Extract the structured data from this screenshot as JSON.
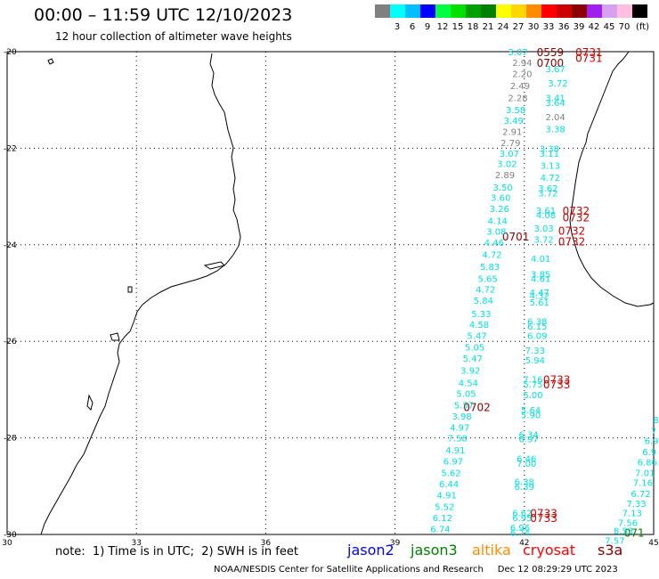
{
  "header": {
    "title": "00:00 – 11:59 UTC 12/10/2023",
    "subtitle": "12 hour collection of altimeter wave heights"
  },
  "color_scale": {
    "unit": "(ft)",
    "bins": [
      {
        "color": "#808080",
        "label": ""
      },
      {
        "color": "#00ffff",
        "label": "3"
      },
      {
        "color": "#00bfff",
        "label": "6"
      },
      {
        "color": "#0000ff",
        "label": "9"
      },
      {
        "color": "#00ff40",
        "label": "12"
      },
      {
        "color": "#00e000",
        "label": "15"
      },
      {
        "color": "#00a000",
        "label": "18"
      },
      {
        "color": "#008000",
        "label": "21"
      },
      {
        "color": "#ffff00",
        "label": "24"
      },
      {
        "color": "#ffd700",
        "label": "27"
      },
      {
        "color": "#ff8c00",
        "label": "30"
      },
      {
        "color": "#ff0000",
        "label": "33"
      },
      {
        "color": "#cc0000",
        "label": "36"
      },
      {
        "color": "#8b0000",
        "label": "39"
      },
      {
        "color": "#a020f0",
        "label": "42"
      },
      {
        "color": "#d8a0f0",
        "label": "45"
      },
      {
        "color": "#ffc0e0",
        "label": "70"
      },
      {
        "color": "#000000",
        "label": ""
      }
    ]
  },
  "axes": {
    "lon_ticks": [
      "30",
      "33",
      "36",
      "39",
      "42",
      "45"
    ],
    "lat_ticks": [
      "-20",
      "-22",
      "-24",
      "-26",
      "-28",
      "-30"
    ]
  },
  "track_labels": [
    {
      "text": "0559",
      "color": "#8b0000",
      "lon": 42.6,
      "lat": -20.0
    },
    {
      "text": "0700",
      "color": "#8b0000",
      "lon": 42.6,
      "lat": -20.22
    },
    {
      "text": "0731",
      "color": "#cc0000",
      "lon": 43.5,
      "lat": -20.0
    },
    {
      "text": "0731",
      "color": "#cc0000",
      "lon": 43.5,
      "lat": -20.12
    },
    {
      "text": "0732",
      "color": "#cc0000",
      "lon": 43.2,
      "lat": -23.28
    },
    {
      "text": "0732",
      "color": "#cc0000",
      "lon": 43.2,
      "lat": -23.42
    },
    {
      "text": "0732",
      "color": "#cc0000",
      "lon": 43.1,
      "lat": -23.7
    },
    {
      "text": "0732",
      "color": "#cc0000",
      "lon": 43.1,
      "lat": -23.92
    },
    {
      "text": "0701",
      "color": "#8b0000",
      "lon": 41.8,
      "lat": -23.82
    },
    {
      "text": "0733",
      "color": "#cc0000",
      "lon": 42.75,
      "lat": -26.78
    },
    {
      "text": "0733",
      "color": "#cc0000",
      "lon": 42.75,
      "lat": -26.88
    },
    {
      "text": "0702",
      "color": "#8b0000",
      "lon": 40.9,
      "lat": -27.35
    },
    {
      "text": "0733",
      "color": "#cc0000",
      "lon": 42.45,
      "lat": -29.55
    },
    {
      "text": "0733",
      "color": "#cc0000",
      "lon": 42.45,
      "lat": -29.65
    },
    {
      "text": "071",
      "color": "#008000",
      "lon": 44.55,
      "lat": -29.95
    }
  ],
  "wave_heights": [
    {
      "value": "3.07",
      "color": "#00e0e0",
      "lon": 41.85,
      "lat": -20.0
    },
    {
      "value": "2.94",
      "color": "#808080",
      "lon": 41.95,
      "lat": -20.22
    },
    {
      "value": "2.20",
      "color": "#808080",
      "lon": 41.95,
      "lat": -20.45
    },
    {
      "value": "2.49",
      "color": "#808080",
      "lon": 41.9,
      "lat": -20.7
    },
    {
      "value": "2.28",
      "color": "#808080",
      "lon": 41.85,
      "lat": -20.95
    },
    {
      "value": "3.58",
      "color": "#00e0e0",
      "lon": 41.8,
      "lat": -21.2
    },
    {
      "value": "3.49",
      "color": "#00e0e0",
      "lon": 41.75,
      "lat": -21.42
    },
    {
      "value": "2.91",
      "color": "#808080",
      "lon": 41.72,
      "lat": -21.65
    },
    {
      "value": "2.79",
      "color": "#808080",
      "lon": 41.68,
      "lat": -21.88
    },
    {
      "value": "3.07",
      "color": "#00e0e0",
      "lon": 41.65,
      "lat": -22.1
    },
    {
      "value": "3.02",
      "color": "#00e0e0",
      "lon": 41.6,
      "lat": -22.32
    },
    {
      "value": "2.89",
      "color": "#808080",
      "lon": 41.55,
      "lat": -22.55
    },
    {
      "value": "3.50",
      "color": "#00e0e0",
      "lon": 41.5,
      "lat": -22.8
    },
    {
      "value": "3.60",
      "color": "#00e0e0",
      "lon": 41.45,
      "lat": -23.02
    },
    {
      "value": "3.26",
      "color": "#00e0e0",
      "lon": 41.42,
      "lat": -23.25
    },
    {
      "value": "4.14",
      "color": "#00e0e0",
      "lon": 41.38,
      "lat": -23.5
    },
    {
      "value": "3.08",
      "color": "#00e0e0",
      "lon": 41.35,
      "lat": -23.72
    },
    {
      "value": "4.46",
      "color": "#00e0e0",
      "lon": 41.3,
      "lat": -23.95
    },
    {
      "value": "4.72",
      "color": "#00e0e0",
      "lon": 41.25,
      "lat": -24.2
    },
    {
      "value": "5.83",
      "color": "#00e0e0",
      "lon": 41.2,
      "lat": -24.45
    },
    {
      "value": "5.65",
      "color": "#00e0e0",
      "lon": 41.15,
      "lat": -24.7
    },
    {
      "value": "4.72",
      "color": "#00e0e0",
      "lon": 41.1,
      "lat": -24.92
    },
    {
      "value": "5.84",
      "color": "#00e0e0",
      "lon": 41.05,
      "lat": -25.15
    },
    {
      "value": "5.33",
      "color": "#00e0e0",
      "lon": 41.0,
      "lat": -25.42
    },
    {
      "value": "4.58",
      "color": "#00e0e0",
      "lon": 40.95,
      "lat": -25.65
    },
    {
      "value": "5.47",
      "color": "#00e0e0",
      "lon": 40.9,
      "lat": -25.88
    },
    {
      "value": "5.05",
      "color": "#00e0e0",
      "lon": 40.85,
      "lat": -26.12
    },
    {
      "value": "5.47",
      "color": "#00e0e0",
      "lon": 40.8,
      "lat": -26.35
    },
    {
      "value": "3.92",
      "color": "#00e0e0",
      "lon": 40.75,
      "lat": -26.6
    },
    {
      "value": "4.54",
      "color": "#00e0e0",
      "lon": 40.7,
      "lat": -26.85
    },
    {
      "value": "5.05",
      "color": "#00e0e0",
      "lon": 40.65,
      "lat": -27.08
    },
    {
      "value": "5.57",
      "color": "#00e0e0",
      "lon": 40.6,
      "lat": -27.32
    },
    {
      "value": "3.98",
      "color": "#00e0e0",
      "lon": 40.55,
      "lat": -27.55
    },
    {
      "value": "4.97",
      "color": "#00e0e0",
      "lon": 40.5,
      "lat": -27.78
    },
    {
      "value": "7.58",
      "color": "#00e0e0",
      "lon": 40.45,
      "lat": -28.0
    },
    {
      "value": "4.91",
      "color": "#00e0e0",
      "lon": 40.4,
      "lat": -28.25
    },
    {
      "value": "6.97",
      "color": "#00e0e0",
      "lon": 40.35,
      "lat": -28.48
    },
    {
      "value": "5.62",
      "color": "#00e0e0",
      "lon": 40.3,
      "lat": -28.72
    },
    {
      "value": "6.44",
      "color": "#00e0e0",
      "lon": 40.25,
      "lat": -28.95
    },
    {
      "value": "4.91",
      "color": "#00e0e0",
      "lon": 40.2,
      "lat": -29.18
    },
    {
      "value": "5.52",
      "color": "#00e0e0",
      "lon": 40.15,
      "lat": -29.42
    },
    {
      "value": "6.12",
      "color": "#00e0e0",
      "lon": 40.1,
      "lat": -29.65
    },
    {
      "value": "6.74",
      "color": "#00e0e0",
      "lon": 40.05,
      "lat": -29.88
    },
    {
      "value": "3.67",
      "color": "#00e0e0",
      "lon": 42.72,
      "lat": -20.35
    },
    {
      "value": "3.72",
      "color": "#00e0e0",
      "lon": 42.78,
      "lat": -20.65
    },
    {
      "value": "3.41",
      "color": "#00e0e0",
      "lon": 42.72,
      "lat": -20.95
    },
    {
      "value": "3.64",
      "color": "#00e0e0",
      "lon": 42.72,
      "lat": -21.05
    },
    {
      "value": "2.04",
      "color": "#808080",
      "lon": 42.72,
      "lat": -21.35
    },
    {
      "value": "3.38",
      "color": "#00e0e0",
      "lon": 42.72,
      "lat": -21.6
    },
    {
      "value": "3.38",
      "color": "#00e0e0",
      "lon": 42.58,
      "lat": -22.0
    },
    {
      "value": "3.11",
      "color": "#00e0e0",
      "lon": 42.58,
      "lat": -22.1
    },
    {
      "value": "3.13",
      "color": "#00e0e0",
      "lon": 42.6,
      "lat": -22.35
    },
    {
      "value": "4.72",
      "color": "#00e0e0",
      "lon": 42.6,
      "lat": -22.6
    },
    {
      "value": "3.62",
      "color": "#00e0e0",
      "lon": 42.55,
      "lat": -22.82
    },
    {
      "value": "3.72",
      "color": "#00e0e0",
      "lon": 42.55,
      "lat": -22.92
    },
    {
      "value": "3.61",
      "color": "#00e0e0",
      "lon": 42.5,
      "lat": -23.28
    },
    {
      "value": "4.08",
      "color": "#00e0e0",
      "lon": 42.5,
      "lat": -23.38
    },
    {
      "value": "3.03",
      "color": "#00e0e0",
      "lon": 42.45,
      "lat": -23.65
    },
    {
      "value": "3.72",
      "color": "#00e0e0",
      "lon": 42.45,
      "lat": -23.88
    },
    {
      "value": "4.01",
      "color": "#00e0e0",
      "lon": 42.38,
      "lat": -24.28
    },
    {
      "value": "3.85",
      "color": "#00e0e0",
      "lon": 42.38,
      "lat": -24.6
    },
    {
      "value": "4.61",
      "color": "#00e0e0",
      "lon": 42.38,
      "lat": -24.7
    },
    {
      "value": "4.47",
      "color": "#00e0e0",
      "lon": 42.35,
      "lat": -24.98
    },
    {
      "value": "4.32",
      "color": "#00e0e0",
      "lon": 42.35,
      "lat": -25.05
    },
    {
      "value": "5.61",
      "color": "#00e0e0",
      "lon": 42.35,
      "lat": -25.18
    },
    {
      "value": "6.38",
      "color": "#00e0e0",
      "lon": 42.3,
      "lat": -25.58
    },
    {
      "value": "6.15",
      "color": "#00e0e0",
      "lon": 42.3,
      "lat": -25.68
    },
    {
      "value": "6.09",
      "color": "#00e0e0",
      "lon": 42.3,
      "lat": -25.88
    },
    {
      "value": "7.33",
      "color": "#00e0e0",
      "lon": 42.25,
      "lat": -26.18
    },
    {
      "value": "5.94",
      "color": "#00e0e0",
      "lon": 42.25,
      "lat": -26.38
    },
    {
      "value": "7.16",
      "color": "#00e0e0",
      "lon": 42.2,
      "lat": -26.78
    },
    {
      "value": "5.75",
      "color": "#00e0e0",
      "lon": 42.2,
      "lat": -26.88
    },
    {
      "value": "5.00",
      "color": "#00e0e0",
      "lon": 42.2,
      "lat": -27.1
    },
    {
      "value": "5.64",
      "color": "#00e0e0",
      "lon": 42.15,
      "lat": -27.42
    },
    {
      "value": "5.90",
      "color": "#00e0e0",
      "lon": 42.15,
      "lat": -27.52
    },
    {
      "value": "6.34",
      "color": "#00e0e0",
      "lon": 42.1,
      "lat": -27.92
    },
    {
      "value": "6.97",
      "color": "#00e0e0",
      "lon": 42.1,
      "lat": -28.02
    },
    {
      "value": "6.46",
      "color": "#00e0e0",
      "lon": 42.05,
      "lat": -28.42
    },
    {
      "value": "7.00",
      "color": "#00e0e0",
      "lon": 42.05,
      "lat": -28.52
    },
    {
      "value": "6.38",
      "color": "#00e0e0",
      "lon": 42.0,
      "lat": -28.9
    },
    {
      "value": "6.39",
      "color": "#00e0e0",
      "lon": 42.0,
      "lat": -29.0
    },
    {
      "value": "6.62",
      "color": "#00e0e0",
      "lon": 41.95,
      "lat": -29.55
    },
    {
      "value": "6.95",
      "color": "#00e0e0",
      "lon": 41.95,
      "lat": -29.65
    },
    {
      "value": "6.96",
      "color": "#00e0e0",
      "lon": 41.9,
      "lat": -29.85
    },
    {
      "value": "6.74",
      "color": "#00e0e0",
      "lon": 41.9,
      "lat": -29.95
    },
    {
      "value": "8",
      "color": "#00e0e0",
      "lon": 45.05,
      "lat": -27.62
    },
    {
      "value": "7",
      "color": "#00e0e0",
      "lon": 45.0,
      "lat": -27.85
    },
    {
      "value": "6.9",
      "color": "#00e0e0",
      "lon": 44.95,
      "lat": -28.05
    },
    {
      "value": "6.9",
      "color": "#00e0e0",
      "lon": 44.9,
      "lat": -28.28
    },
    {
      "value": "6.86",
      "color": "#00e0e0",
      "lon": 44.85,
      "lat": -28.5
    },
    {
      "value": "7.01",
      "color": "#00e0e0",
      "lon": 44.8,
      "lat": -28.72
    },
    {
      "value": "7.16",
      "color": "#00e0e0",
      "lon": 44.75,
      "lat": -28.92
    },
    {
      "value": "6.72",
      "color": "#00e0e0",
      "lon": 44.7,
      "lat": -29.15
    },
    {
      "value": "7.33",
      "color": "#00e0e0",
      "lon": 44.6,
      "lat": -29.35
    },
    {
      "value": "7.13",
      "color": "#00e0e0",
      "lon": 44.5,
      "lat": -29.55
    },
    {
      "value": "7.56",
      "color": "#00e0e0",
      "lon": 44.4,
      "lat": -29.75
    },
    {
      "value": "8.53",
      "color": "#00e0e0",
      "lon": 44.3,
      "lat": -29.92
    },
    {
      "value": "7.57",
      "color": "#00e0e0",
      "lon": 44.1,
      "lat": -30.12
    }
  ],
  "footer": {
    "note": "note:  1) Time is in UTC;  2) SWH is in feet",
    "satellites": [
      {
        "name": "jason2",
        "color": "#0000ff"
      },
      {
        "name": "jason3",
        "color": "#008000"
      },
      {
        "name": "altika",
        "color": "#ff8c00"
      },
      {
        "name": "cryosat",
        "color": "#ff0000"
      },
      {
        "name": "s3a",
        "color": "#800000"
      }
    ],
    "credit": "NOAA/NESDIS Center for Satellite Applications and Research     Dec 12 08:29:29 UTC 2023"
  }
}
